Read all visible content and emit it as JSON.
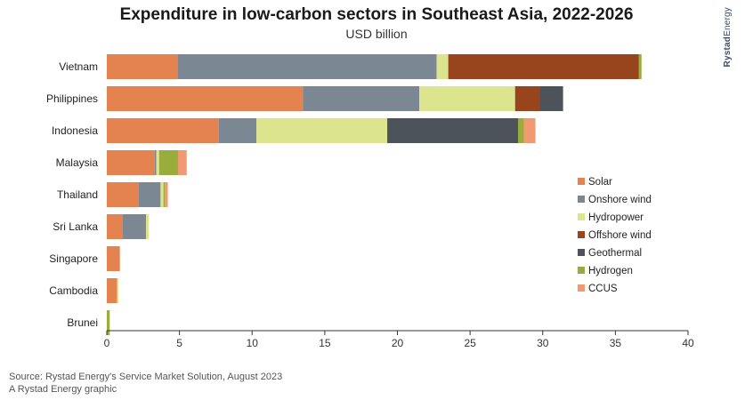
{
  "chart_data": {
    "type": "bar",
    "orientation": "horizontal",
    "stacked": true,
    "title": "Expenditure in low-carbon sectors in Southeast Asia, 2022-2026",
    "subtitle": "USD billion",
    "xlim": [
      0,
      40
    ],
    "xticks": [
      0,
      5,
      10,
      15,
      20,
      25,
      30,
      35,
      40
    ],
    "categories": [
      "Vietnam",
      "Philippines",
      "Indonesia",
      "Malaysia",
      "Thailand",
      "Sri Lanka",
      "Singapore",
      "Cambodia",
      "Brunei"
    ],
    "series": [
      {
        "name": "Solar",
        "color": "#e4834f",
        "values": [
          4.9,
          13.5,
          7.7,
          3.3,
          2.2,
          1.1,
          0.9,
          0.7,
          0.0
        ]
      },
      {
        "name": "Onshore wind",
        "color": "#7b8793",
        "values": [
          17.8,
          8.0,
          2.6,
          0.1,
          1.5,
          1.6,
          0.0,
          0.0,
          0.0
        ]
      },
      {
        "name": "Hydropower",
        "color": "#dde48e",
        "values": [
          0.8,
          6.6,
          9.0,
          0.2,
          0.2,
          0.2,
          0.0,
          0.1,
          0.0
        ]
      },
      {
        "name": "Offshore wind",
        "color": "#98441d",
        "values": [
          13.1,
          1.7,
          0.0,
          0.0,
          0.0,
          0.0,
          0.0,
          0.0,
          0.0
        ]
      },
      {
        "name": "Geothermal",
        "color": "#4d535a",
        "values": [
          0.0,
          1.6,
          9.0,
          0.0,
          0.0,
          0.0,
          0.0,
          0.0,
          0.0
        ]
      },
      {
        "name": "Hydrogen",
        "color": "#99ad3c",
        "values": [
          0.2,
          0.0,
          0.4,
          1.3,
          0.1,
          0.0,
          0.0,
          0.0,
          0.2
        ]
      },
      {
        "name": "CCUS",
        "color": "#f19a72",
        "values": [
          0.0,
          0.0,
          0.8,
          0.6,
          0.2,
          0.0,
          0.0,
          0.0,
          0.0
        ]
      }
    ],
    "legend_position": "right",
    "grid": false
  },
  "footer": {
    "source": "Source: Rystad Energy's Service Market Solution, August 2023",
    "credit": "A Rystad Energy graphic"
  },
  "brand": {
    "bold": "Rystad",
    "light": "Energy"
  }
}
